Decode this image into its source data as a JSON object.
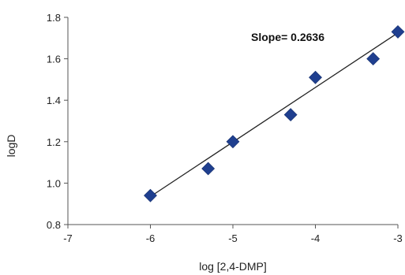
{
  "chart_data": {
    "type": "scatter",
    "title": "",
    "xlabel": "log [2,4-DMP]",
    "ylabel": "logD",
    "xlim": [
      -7,
      -3
    ],
    "ylim": [
      0.8,
      1.8
    ],
    "x_ticks": [
      "-7",
      "-6",
      "-5",
      "-4",
      "-3"
    ],
    "y_ticks": [
      "0.8",
      "1.0",
      "1.2",
      "1.4",
      "1.6",
      "1.8"
    ],
    "grid": false,
    "legend": "none",
    "series": [
      {
        "points": [
          {
            "x": -6.0,
            "y": 0.94
          },
          {
            "x": -5.3,
            "y": 1.07
          },
          {
            "x": -5.0,
            "y": 1.2
          },
          {
            "x": -4.3,
            "y": 1.33
          },
          {
            "x": -4.0,
            "y": 1.51
          },
          {
            "x": -3.3,
            "y": 1.6
          },
          {
            "x": -3.0,
            "y": 1.73
          }
        ],
        "marker": "diamond",
        "color": "#1f3f8f"
      }
    ],
    "trendline": {
      "type": "linear",
      "slope": 0.2636,
      "x_range": [
        -6.0,
        -3.0
      ],
      "y_range": [
        0.935,
        1.725
      ],
      "color": "#222222"
    },
    "annotations": [
      {
        "text": "Slope= 0.2636",
        "position": "top-center"
      }
    ]
  }
}
